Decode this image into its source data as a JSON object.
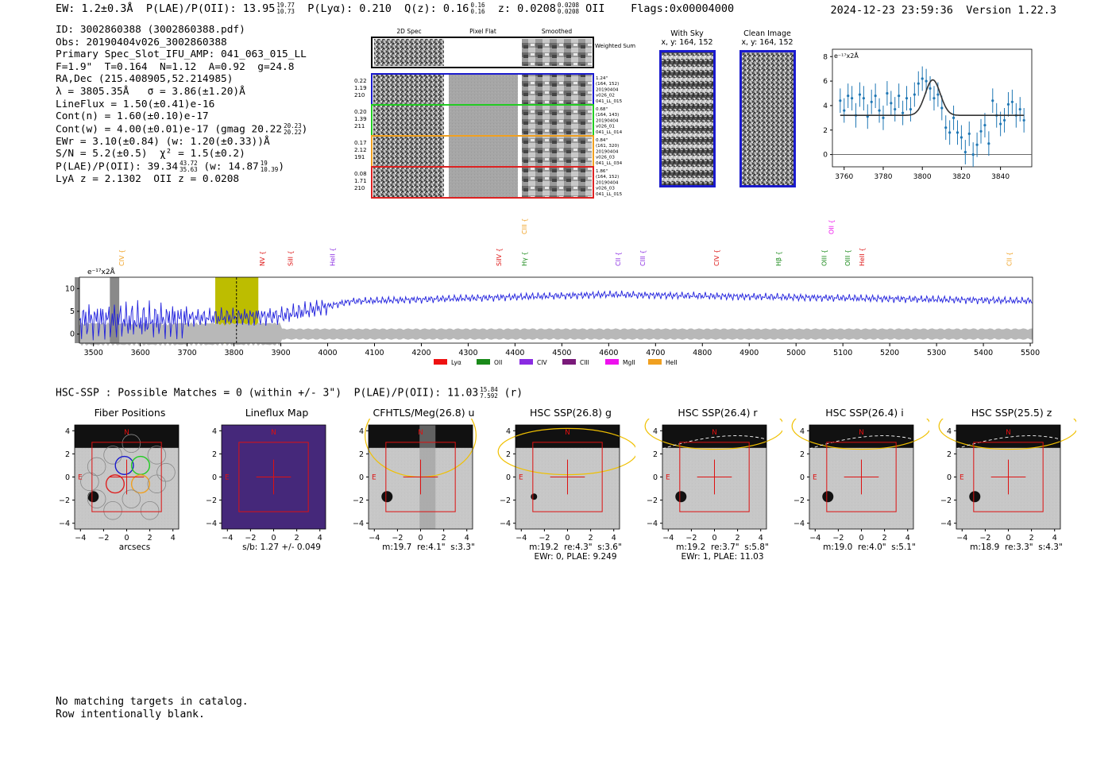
{
  "header": {
    "ew": "EW: 1.2±0.3Å",
    "plae_label": "P(LAE)/P(OII): 13.95",
    "plae_hi": "19.77",
    "plae_lo": "10.73",
    "plya": "P(Lyα): 0.210",
    "qz_label": "Q(z): 0.16",
    "qz_hi": "0.16",
    "qz_lo": "0.16",
    "z_label": "z: 0.0208",
    "z_hi": "0.0208",
    "z_lo": "0.0208",
    "z_line": "OII",
    "flags": "Flags:0x00004000",
    "date": "2024-12-23 23:59:36",
    "version": "Version 1.22.3"
  },
  "info": {
    "id": "ID: 3002860388 (3002860388.pdf)",
    "obs": "Obs: 20190404v026_3002860388",
    "primary": "Primary Spec_Slot_IFU_AMP: 041_063_015_LL",
    "fiber": "F=1.9\"  T=0.164  N=1.12  A=0.92  g=24.8",
    "radec": "RA,Dec (215.408905,52.214985)",
    "lambda": "λ = 3805.35Å   σ = 3.86(±1.20)Å",
    "lineflux": "LineFlux = 1.50(±0.41)e-16",
    "contn": "Cont(n) = 1.60(±0.10)e-17",
    "contw": "Cont(w) = 4.00(±0.01)e-17 (gmag 20.22",
    "contw_hi": "20.23",
    "contw_lo": "20.22",
    "contw_end": ")",
    "ewr": "EWr = 3.10(±0.84) (w: 1.20(±0.33))Å",
    "sn": "S/N = 5.2(±0.5)  χ² = 1.5(±0.2)",
    "plae": "P(LAE)/P(OII): 39.34",
    "plae_hi": "43.72",
    "plae_lo": "35.63",
    "plae_w": "(w: 14.87",
    "plae_w_hi": "19",
    "plae_w_lo": "10.39",
    "plae_w_end": ")",
    "lya": "LyA z = 2.1302  OII z = 0.0208"
  },
  "spec2d": {
    "col_2d": "2D Spec",
    "col_flat": "Pixel Flat",
    "col_smooth": "Smoothed",
    "weighted": "Weighted Sum",
    "rows": [
      {
        "w": "0.22",
        "c": "1.19",
        "n": "210",
        "dist": "1.24\"",
        "xy": "(164, 152)",
        "obs": "20190404",
        "vis": "v026_02",
        "amp": "041_LL_015",
        "color": "#1a1acd"
      },
      {
        "w": "0.20",
        "c": "1.39",
        "n": "211",
        "dist": "0.68\"",
        "xy": "(164, 143)",
        "obs": "20190404",
        "vis": "v026_01",
        "amp": "041_LL_014",
        "color": "#22cc22"
      },
      {
        "w": "0.17",
        "c": "2.12",
        "n": "191",
        "dist": "0.84\"",
        "xy": "(161, 320)",
        "obs": "20190404",
        "vis": "v026_03",
        "amp": "041_LL_034",
        "color": "#f0a020"
      },
      {
        "w": "0.08",
        "c": "1.71",
        "n": "210",
        "dist": "1.86\"",
        "xy": "(164, 152)",
        "obs": "20190404",
        "vis": "v026_03",
        "amp": "041_LL_015",
        "color": "#dd2222"
      }
    ]
  },
  "sky": {
    "title": "With Sky",
    "xy": "x, y: 164, 152"
  },
  "clean": {
    "title": "Clean Image",
    "xy": "x, y: 164, 152"
  },
  "colors": {
    "blue": "#1f1fdd",
    "fitblue": "#1f77b4",
    "olive": "#bdbd00",
    "grey": "#aaaaaa"
  },
  "chart_data": [
    {
      "type": "scatter",
      "name": "line-fit",
      "unit_label": "e⁻¹⁷x2Å",
      "x": [
        3758,
        3760,
        3762,
        3764,
        3766,
        3768,
        3770,
        3772,
        3774,
        3776,
        3778,
        3780,
        3782,
        3784,
        3786,
        3788,
        3790,
        3792,
        3794,
        3796,
        3798,
        3800,
        3802,
        3804,
        3806,
        3808,
        3810,
        3812,
        3814,
        3816,
        3818,
        3820,
        3822,
        3824,
        3826,
        3828,
        3830,
        3832,
        3834,
        3836,
        3838,
        3840,
        3842,
        3844,
        3846,
        3848,
        3850,
        3852
      ],
      "y": [
        4.4,
        3.6,
        4.8,
        4.6,
        3.2,
        4.9,
        4.6,
        3.1,
        4.3,
        4.8,
        3.6,
        3.0,
        5.0,
        4.2,
        3.7,
        4.8,
        3.4,
        4.6,
        3.7,
        4.9,
        5.8,
        6.2,
        6.0,
        5.4,
        4.6,
        4.9,
        3.8,
        2.2,
        1.8,
        3.0,
        1.8,
        1.4,
        0.2,
        1.7,
        0.0,
        0.8,
        1.9,
        2.4,
        0.9,
        4.4,
        3.2,
        2.5,
        2.8,
        4.1,
        4.3,
        3.2,
        3.7,
        2.8
      ],
      "err": 1.0,
      "fit_continuum": 3.2,
      "fit_center": 3805.35,
      "fit_sigma": 3.86,
      "fit_peak": 6.1,
      "xlim": [
        3754,
        3856
      ],
      "ylim": [
        -1.0,
        8.6
      ],
      "xticks": [
        3760,
        3780,
        3800,
        3820,
        3840
      ],
      "yticks": [
        0,
        2,
        4,
        6,
        8
      ]
    },
    {
      "type": "line",
      "name": "full-spectrum",
      "unit_label": "e⁻¹⁷x2Å",
      "xlim": [
        3470,
        5505
      ],
      "ylim": [
        -2,
        12.5
      ],
      "xticks": [
        3500,
        3600,
        3700,
        3800,
        3900,
        4000,
        4100,
        4200,
        4300,
        4400,
        4500,
        4600,
        4700,
        4800,
        4900,
        5000,
        5100,
        5200,
        5300,
        5400,
        5500
      ],
      "yticks": [
        0,
        5,
        10
      ],
      "highlight": [
        3760,
        3852
      ],
      "marker": 3805.35,
      "masks": [
        [
          3535,
          3555
        ],
        [
          3460,
          3470
        ]
      ],
      "lines": [
        {
          "label": "CIV",
          "x": 3560,
          "color": "#f0a020",
          "row": 1
        },
        {
          "label": "NV",
          "x": 3860,
          "color": "#dd1111",
          "row": 1
        },
        {
          "label": "SiII",
          "x": 3920,
          "color": "#dd1111",
          "row": 1
        },
        {
          "label": "HeII",
          "x": 4010,
          "color": "#8a2be2",
          "row": 1
        },
        {
          "label": "SiIV",
          "x": 4365,
          "color": "#dd1111",
          "row": 1
        },
        {
          "label": "CIII",
          "x": 4420,
          "color": "#f0a020",
          "row": 0
        },
        {
          "label": "Hγ",
          "x": 4420,
          "color": "#1a8a1a",
          "row": 1
        },
        {
          "label": "CII",
          "x": 4620,
          "color": "#8a2be2",
          "row": 1
        },
        {
          "label": "CIII",
          "x": 4672,
          "color": "#8a2be2",
          "row": 1
        },
        {
          "label": "CIV",
          "x": 4830,
          "color": "#dd1111",
          "row": 1
        },
        {
          "label": "Hβ",
          "x": 4962,
          "color": "#1a8a1a",
          "row": 1
        },
        {
          "label": "OII",
          "x": 5075,
          "color": "#ee11ee",
          "row": 0
        },
        {
          "label": "OIII",
          "x": 5060,
          "color": "#1a8a1a",
          "row": 1
        },
        {
          "label": "OIII",
          "x": 5110,
          "color": "#1a8a1a",
          "row": 1
        },
        {
          "label": "HeII",
          "x": 5140,
          "color": "#dd1111",
          "row": 1
        },
        {
          "label": "CII",
          "x": 5455,
          "color": "#f0a020",
          "row": 1
        }
      ],
      "legend": [
        {
          "label": "Lyα",
          "color": "#ee1111"
        },
        {
          "label": "OII",
          "color": "#1a8a1a"
        },
        {
          "label": "CIV",
          "color": "#8a2be2"
        },
        {
          "label": "CIII",
          "color": "#7a1a7a"
        },
        {
          "label": "MgII",
          "color": "#ee11ee"
        },
        {
          "label": "HeII",
          "color": "#f0a020"
        }
      ]
    }
  ],
  "hsc": {
    "summary": "HSC-SSP : Possible Matches = 0 (within +/- 3\")  P(LAE)/P(OII): 11.03",
    "plae_hi": "15.84",
    "plae_lo": "7.592",
    "band": "(r)"
  },
  "cutouts": [
    {
      "title": "Fiber Positions",
      "cap1": "arcsecs",
      "cap2": ""
    },
    {
      "title": "Lineflux Map",
      "cap1": "s/b: 1.27 +/- 0.049",
      "cap2": ""
    },
    {
      "title": "CFHTLS/Meg(26.8) u",
      "cap1": "m:19.7  re:4.1\"  s:3.3\"",
      "cap2": ""
    },
    {
      "title": "HSC SSP(26.8) g",
      "cap1": "m:19.2  re:4.3\"  s:3.6\"",
      "cap2": "EWr: 0, PLAE: 9.249"
    },
    {
      "title": "HSC SSP(26.4) r",
      "cap1": "m:19.2  re:3.7\"  s:5.8\"",
      "cap2": "EWr: 1, PLAE: 11.03"
    },
    {
      "title": "HSC SSP(26.4) i",
      "cap1": "m:19.0  re:4.0\"  s:5.1\"",
      "cap2": ""
    },
    {
      "title": "HSC SSP(25.5) z",
      "cap1": "m:18.9  re:3.3\"  s:4.3\"",
      "cap2": ""
    }
  ],
  "cutout_axes": {
    "ticks": [
      "4",
      "2",
      "0",
      "−2",
      "−4"
    ],
    "xticks": [
      "−4",
      "−2",
      "0",
      "2",
      "4"
    ],
    "north": "N",
    "east": "E"
  },
  "footer": {
    "line1": "No matching targets in catalog.",
    "line2": "Row intentionally blank."
  }
}
